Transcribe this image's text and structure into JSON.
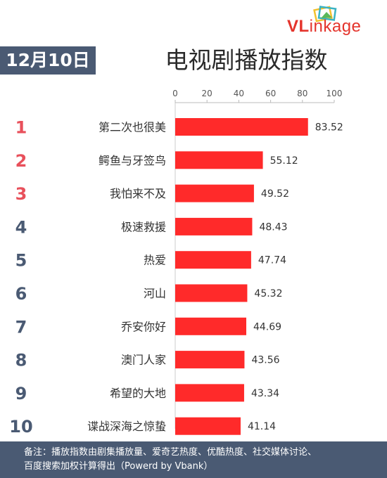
{
  "header": {
    "date": "12月10日",
    "title": "电视剧播放指数",
    "logo_prefix": "VL",
    "logo_suffix": "inkage"
  },
  "footer": {
    "line1": "备注：播放指数由剧集播放量、爱奇艺热度、优酷热度、社交媒体讨论、",
    "line2": "百度搜索加权计算得出（Powerd by Vbank）"
  },
  "colors": {
    "bar": "#ff2a2a",
    "rank_top": "#e8505b",
    "rank_other": "#4a5a73",
    "banner": "#4a5a73"
  },
  "chart_data": {
    "type": "bar",
    "orientation": "horizontal",
    "ranks": [
      "1",
      "2",
      "3",
      "4",
      "5",
      "6",
      "7",
      "8",
      "9",
      "10"
    ],
    "categories": [
      "第二次也很美",
      "鳄鱼与牙签鸟",
      "我怕来不及",
      "极速救援",
      "热爱",
      "河山",
      "乔安你好",
      "澳门人家",
      "希望的大地",
      "谍战深海之惊蛰"
    ],
    "values": [
      83.52,
      55.12,
      49.52,
      48.43,
      47.74,
      45.32,
      44.69,
      43.56,
      43.34,
      41.14
    ],
    "value_labels": [
      "83.52",
      "55.12",
      "49.52",
      "48.43",
      "47.74",
      "45.32",
      "44.69",
      "43.56",
      "43.34",
      "41.14"
    ],
    "xticks": [
      "0",
      "20",
      "40",
      "60",
      "80",
      "100"
    ],
    "xlim": [
      0,
      100
    ],
    "axis_position": "top",
    "grid": false,
    "legend": "none"
  }
}
